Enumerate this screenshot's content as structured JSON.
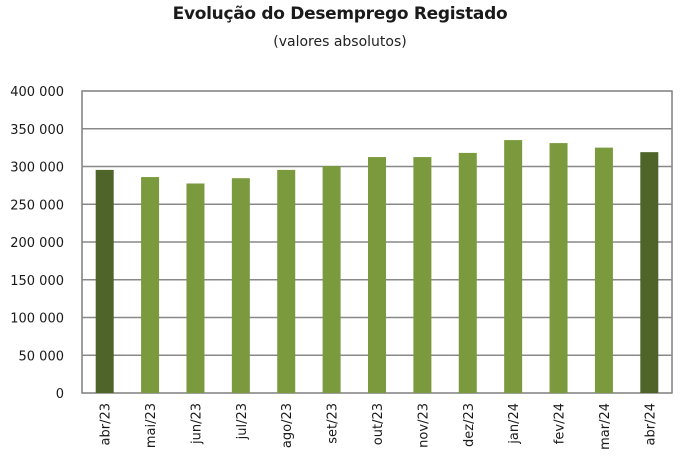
{
  "chart_data": {
    "type": "bar",
    "title": "Evolução do Desemprego Registado",
    "subtitle": "(valores absolutos)",
    "categories": [
      "abr/23",
      "mai/23",
      "jun/23",
      "jul/23",
      "ago/23",
      "set/23",
      "out/23",
      "nov/23",
      "dez/23",
      "jan/24",
      "fev/24",
      "mar/24",
      "abr/24"
    ],
    "values": [
      295500,
      286000,
      277500,
      284500,
      295500,
      300500,
      312500,
      312500,
      318000,
      335000,
      331000,
      325000,
      319000
    ],
    "ylim": [
      0,
      400000
    ],
    "yticks": [
      0,
      50000,
      100000,
      150000,
      200000,
      250000,
      300000,
      350000,
      400000
    ],
    "ytick_labels": [
      "0",
      "50 000",
      "100 000",
      "150 000",
      "200 000",
      "250 000",
      "300 000",
      "350 000",
      "400 000"
    ],
    "highlighted": [
      "abr/23",
      "abr/24"
    ],
    "grid": true,
    "colors": {
      "bar": "#7a9a3d",
      "bar_highlight": "#4f6428",
      "grid": "#888888",
      "frame": "#7f7f7f"
    }
  }
}
